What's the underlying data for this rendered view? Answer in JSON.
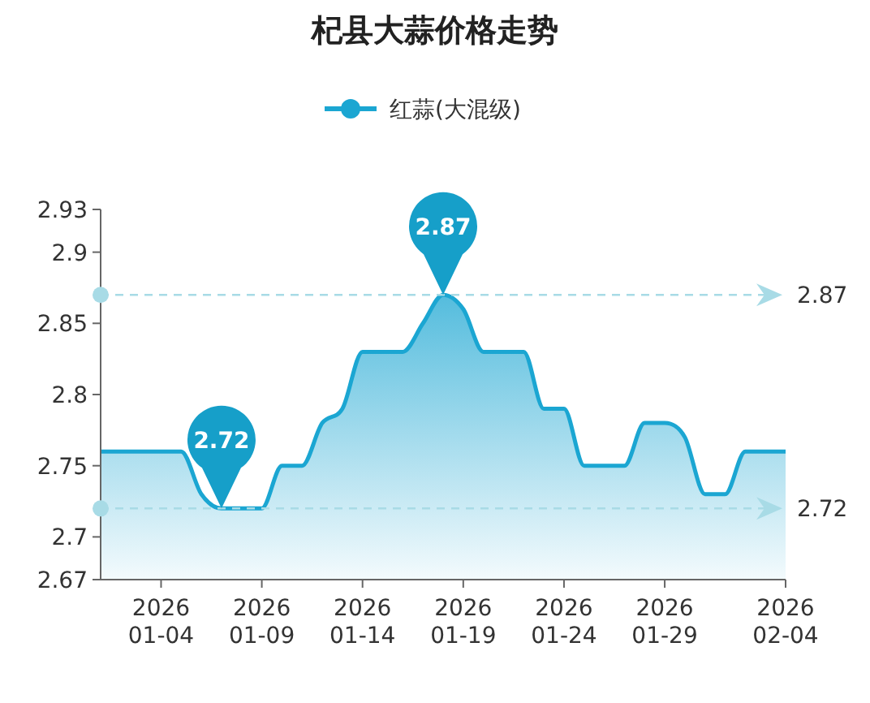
{
  "chart_data": {
    "type": "area",
    "title": "杞县大蒜价格走势",
    "x": [
      "2026-01-01",
      "2026-01-02",
      "2026-01-03",
      "2026-01-04",
      "2026-01-05",
      "2026-01-06",
      "2026-01-07",
      "2026-01-08",
      "2026-01-09",
      "2026-01-10",
      "2026-01-11",
      "2026-01-12",
      "2026-01-13",
      "2026-01-14",
      "2026-01-15",
      "2026-01-16",
      "2026-01-17",
      "2026-01-18",
      "2026-01-19",
      "2026-01-20",
      "2026-01-21",
      "2026-01-22",
      "2026-01-23",
      "2026-01-24",
      "2026-01-25",
      "2026-01-26",
      "2026-01-27",
      "2026-01-28",
      "2026-01-29",
      "2026-01-30",
      "2026-01-31",
      "2026-02-01",
      "2026-02-02",
      "2026-02-03",
      "2026-02-04"
    ],
    "series": [
      {
        "name": "红蒜(大混级)",
        "color": "#1ba6d2",
        "values": [
          2.76,
          2.76,
          2.76,
          2.76,
          2.76,
          2.73,
          2.72,
          2.72,
          2.72,
          2.75,
          2.75,
          2.78,
          2.79,
          2.83,
          2.83,
          2.83,
          2.85,
          2.87,
          2.86,
          2.83,
          2.83,
          2.83,
          2.79,
          2.79,
          2.75,
          2.75,
          2.75,
          2.78,
          2.78,
          2.77,
          2.73,
          2.73,
          2.76,
          2.76,
          2.76
        ]
      }
    ],
    "xlim": [
      "2026-01-01",
      "2026-02-04"
    ],
    "xticks": [
      {
        "value": "2026-01-04",
        "label": "2026\n01-04"
      },
      {
        "value": "2026-01-09",
        "label": "2026\n01-09"
      },
      {
        "value": "2026-01-14",
        "label": "2026\n01-14"
      },
      {
        "value": "2026-01-19",
        "label": "2026\n01-19"
      },
      {
        "value": "2026-01-24",
        "label": "2026\n01-24"
      },
      {
        "value": "2026-01-29",
        "label": "2026\n01-29"
      },
      {
        "value": "2026-02-04",
        "label": "2026\n02-04"
      }
    ],
    "ylim": [
      2.67,
      2.93
    ],
    "yticks": [
      2.67,
      {
        "value": 2.7,
        "label": "2.7"
      },
      2.75,
      {
        "value": 2.8,
        "label": "2.8"
      },
      2.85,
      {
        "value": 2.9,
        "label": "2.9"
      },
      2.93
    ],
    "ref_lines": [
      {
        "axis": "y",
        "value": 2.87,
        "label": "2.87",
        "color": "#a8dbe6",
        "line_style": "dashed"
      },
      {
        "axis": "y",
        "value": 2.72,
        "label": "2.72",
        "color": "#a8dbe6",
        "line_style": "dashed"
      }
    ],
    "annotations": [
      {
        "text": "2.87",
        "x": "2026-01-18",
        "y": 2.87
      },
      {
        "text": "2.72",
        "x": "2026-01-07",
        "y": 2.72
      }
    ],
    "legend": "top",
    "grid": false
  }
}
